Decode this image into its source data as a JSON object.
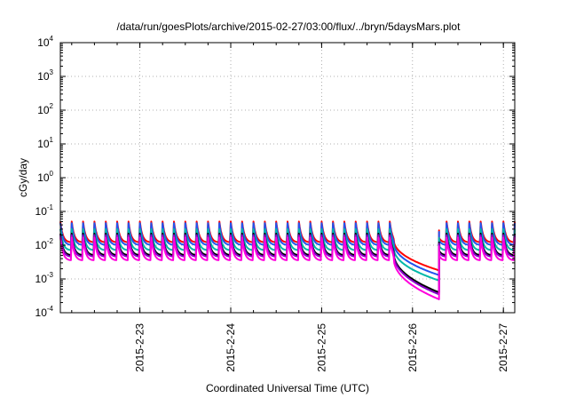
{
  "chart_data": {
    "type": "line",
    "title": "/data/run/goesPlots/archive/2015-02-27/03:00/flux/../bryn/5daysMars.plot",
    "xlabel": "Coordinated Universal Time (UTC)",
    "ylabel": "cGy/day",
    "yscale": "log",
    "ylim": [
      0.0001,
      10000
    ],
    "y_ticks": [
      {
        "base": "10",
        "exp": "-4",
        "value": 0.0001
      },
      {
        "base": "10",
        "exp": "-3",
        "value": 0.001
      },
      {
        "base": "10",
        "exp": "-2",
        "value": 0.01
      },
      {
        "base": "10",
        "exp": "-1",
        "value": 0.1
      },
      {
        "base": "10",
        "exp": "0",
        "value": 1
      },
      {
        "base": "10",
        "exp": "1",
        "value": 10
      },
      {
        "base": "10",
        "exp": "2",
        "value": 100
      },
      {
        "base": "10",
        "exp": "3",
        "value": 1000
      },
      {
        "base": "10",
        "exp": "4",
        "value": 10000
      }
    ],
    "xlim": [
      "2015-02-22T03:00",
      "2015-02-27T03:00"
    ],
    "x_ticks": [
      {
        "label": "2015-2-23",
        "value": "2015-02-23T00:00"
      },
      {
        "label": "2015-2-24",
        "value": "2015-02-24T00:00"
      },
      {
        "label": "2015-2-25",
        "value": "2015-02-25T00:00"
      },
      {
        "label": "2015-2-26",
        "value": "2015-02-26T00:00"
      },
      {
        "label": "2015-2-27",
        "value": "2015-02-27T00:00"
      }
    ],
    "grid": true,
    "pattern": {
      "oscillation_period_hours": 3,
      "gap_start": "2015-02-25T19:00",
      "gap_end": "2015-02-26T07:00"
    },
    "series": [
      {
        "color": "#ff0000",
        "peak": 0.05,
        "trough": 0.012,
        "gap_min": 0.0018
      },
      {
        "color": "#2255ee",
        "peak": 0.045,
        "trough": 0.01,
        "gap_min": 0.0013
      },
      {
        "color": "#00b8a8",
        "peak": 0.03,
        "trough": 0.007,
        "gap_min": 0.0009
      },
      {
        "color": "#000000",
        "peak": 0.022,
        "trough": 0.005,
        "gap_min": 0.0004
      },
      {
        "color": "#8800cc",
        "peak": 0.02,
        "trough": 0.0045,
        "gap_min": 0.00035
      },
      {
        "color": "#ff00dd",
        "peak": 0.017,
        "trough": 0.0035,
        "gap_min": 0.00025
      }
    ]
  }
}
